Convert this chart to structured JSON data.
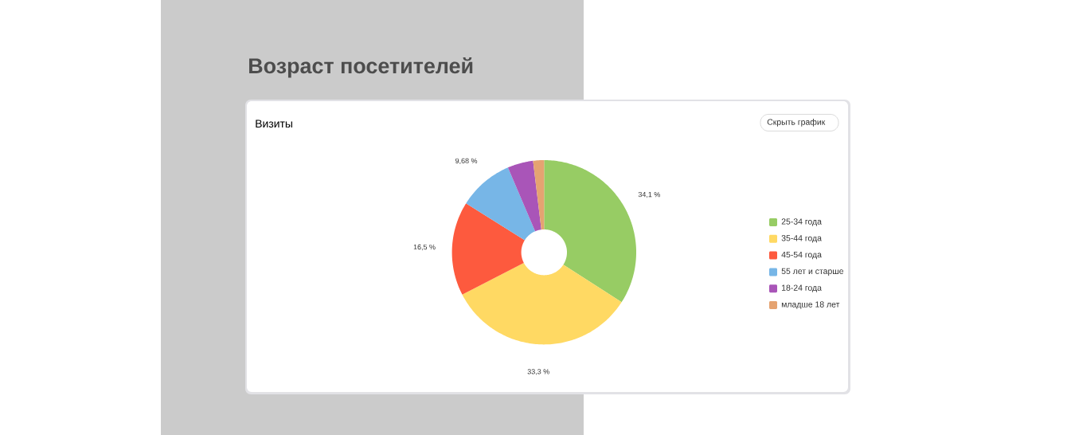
{
  "chart_data": {
    "type": "donut",
    "title": "Возраст посетителей",
    "subtitle": "Визиты",
    "annotations": [
      "Скрыть график"
    ],
    "categories": [
      "25-34 года",
      "35-44 года",
      "45-54 года",
      "55 лет и старше",
      "18-24 года",
      "младше 18 лет"
    ],
    "values": [
      34.1,
      33.3,
      16.5,
      9.68,
      4.5,
      1.92
    ],
    "colors": [
      "#97cc64",
      "#ffd963",
      "#fd5a3e",
      "#77b6e7",
      "#a955b8",
      "#e5a371"
    ],
    "value_labels": [
      "34,1 %",
      "33,3 %",
      "16,5 %",
      "9,68 %",
      null,
      null
    ],
    "legend": "right"
  }
}
